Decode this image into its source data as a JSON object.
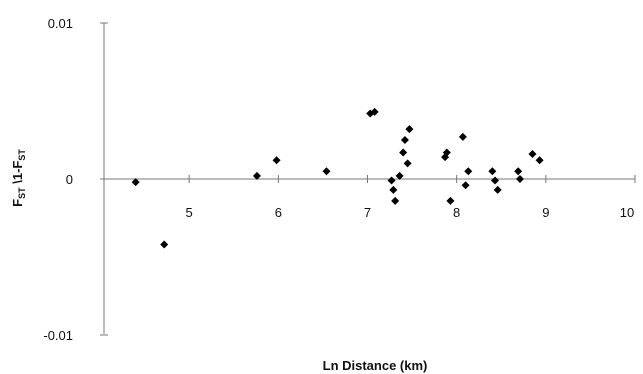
{
  "chart_data": {
    "type": "scatter",
    "title": "",
    "xlabel": "Ln Distance (km)",
    "ylabel": {
      "prefix": "F",
      "prefix_sub": "ST",
      "middle": " \\1-F",
      "suffix_sub": "ST"
    },
    "xlim": [
      4,
      10
    ],
    "ylim": [
      -0.01,
      0.01
    ],
    "x_ticks": [
      5,
      6,
      7,
      8,
      9,
      10
    ],
    "x_tick_labels": [
      "5",
      "6",
      "7",
      "8",
      "9",
      "10"
    ],
    "y_ticks": [
      0.01,
      0,
      -0.01
    ],
    "y_tick_labels": [
      "0.01",
      "0",
      "-0.01"
    ],
    "grid": false,
    "legend": "none",
    "marker": "diamond",
    "marker_color": "#000000",
    "points": [
      {
        "x": 4.4,
        "y": -0.0002
      },
      {
        "x": 4.72,
        "y": -0.0042
      },
      {
        "x": 5.76,
        "y": 0.0002
      },
      {
        "x": 5.98,
        "y": 0.0012
      },
      {
        "x": 6.54,
        "y": 0.0005
      },
      {
        "x": 7.03,
        "y": 0.0042
      },
      {
        "x": 7.08,
        "y": 0.0043
      },
      {
        "x": 7.27,
        "y": -0.0001
      },
      {
        "x": 7.29,
        "y": -0.0007
      },
      {
        "x": 7.31,
        "y": -0.0014
      },
      {
        "x": 7.36,
        "y": 0.0002
      },
      {
        "x": 7.4,
        "y": 0.0017
      },
      {
        "x": 7.42,
        "y": 0.0025
      },
      {
        "x": 7.45,
        "y": 0.001
      },
      {
        "x": 7.47,
        "y": 0.0032
      },
      {
        "x": 7.87,
        "y": 0.0014
      },
      {
        "x": 7.89,
        "y": 0.0017
      },
      {
        "x": 7.93,
        "y": -0.0014
      },
      {
        "x": 8.07,
        "y": 0.0027
      },
      {
        "x": 8.1,
        "y": -0.0004
      },
      {
        "x": 8.13,
        "y": 0.0005
      },
      {
        "x": 8.4,
        "y": 0.0005
      },
      {
        "x": 8.43,
        "y": -0.0001
      },
      {
        "x": 8.46,
        "y": -0.0007
      },
      {
        "x": 8.69,
        "y": 0.0005
      },
      {
        "x": 8.71,
        "y": 0
      },
      {
        "x": 8.85,
        "y": 0.0016
      },
      {
        "x": 8.93,
        "y": 0.0012
      }
    ]
  }
}
